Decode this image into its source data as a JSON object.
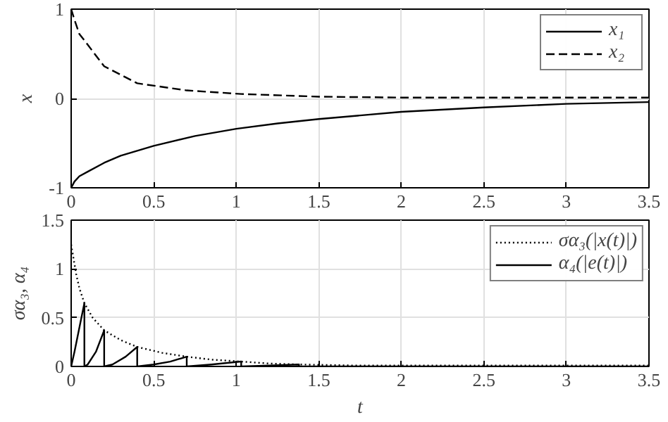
{
  "chart_data": [
    {
      "type": "line",
      "ylabel": "x",
      "xlim": [
        0,
        3.5
      ],
      "ylim": [
        -1,
        1
      ],
      "xticks": [
        0,
        0.5,
        1,
        1.5,
        2,
        2.5,
        3,
        3.5
      ],
      "yticks": [
        -1,
        0,
        1
      ],
      "grid": true,
      "legend": "top right",
      "series": [
        {
          "name": "x₁",
          "color": "#000000",
          "line_style": "solid",
          "x": [
            0,
            0.02,
            0.05,
            0.1,
            0.2,
            0.3,
            0.5,
            0.75,
            1,
            1.25,
            1.5,
            1.75,
            2,
            2.5,
            3,
            3.5
          ],
          "values": [
            -1,
            -0.93,
            -0.87,
            -0.82,
            -0.72,
            -0.64,
            -0.53,
            -0.42,
            -0.34,
            -0.28,
            -0.23,
            -0.19,
            -0.15,
            -0.1,
            -0.06,
            -0.04
          ]
        },
        {
          "name": "x₂",
          "color": "#000000",
          "line_style": "dashed",
          "x": [
            0,
            0.02,
            0.05,
            0.08,
            0.2,
            0.4,
            0.7,
            1.03,
            1.5,
            2,
            3.5
          ],
          "values": [
            1,
            0.88,
            0.72,
            0.65,
            0.36,
            0.17,
            0.09,
            0.05,
            0.02,
            0.01,
            0.01
          ]
        }
      ]
    },
    {
      "type": "line",
      "xlabel": "t",
      "ylabel": "σα₃, α₄",
      "xlim": [
        0,
        3.5
      ],
      "ylim": [
        0,
        1.5
      ],
      "xticks": [
        0,
        0.5,
        1,
        1.5,
        2,
        2.5,
        3,
        3.5
      ],
      "yticks": [
        0,
        0.5,
        1,
        1.5
      ],
      "grid": true,
      "legend": "top right",
      "series": [
        {
          "name": "σα₃(|x(t)|)",
          "color": "#000000",
          "line_style": "dotted",
          "x": [
            0,
            0.03,
            0.05,
            0.08,
            0.13,
            0.2,
            0.3,
            0.4,
            0.55,
            0.7,
            0.85,
            1.03,
            1.2,
            1.38,
            1.7,
            2,
            2.5,
            3.5
          ],
          "values": [
            1.25,
            0.95,
            0.8,
            0.65,
            0.5,
            0.37,
            0.27,
            0.2,
            0.14,
            0.1,
            0.07,
            0.05,
            0.03,
            0.02,
            0.01,
            0.01,
            0.01,
            0.01
          ]
        },
        {
          "name": "α₄(|e(t)|)",
          "color": "#000000",
          "line_style": "solid",
          "x": [
            0,
            0.02,
            0.05,
            0.08,
            0.08,
            0.1,
            0.15,
            0.2,
            0.2,
            0.25,
            0.33,
            0.4,
            0.4,
            0.5,
            0.6,
            0.7,
            0.7,
            0.85,
            1.03,
            1.03,
            1.2,
            1.38,
            1.38,
            3.5
          ],
          "values": [
            0,
            0.15,
            0.4,
            0.65,
            0,
            0.02,
            0.15,
            0.37,
            0,
            0.02,
            0.1,
            0.2,
            0,
            0.02,
            0.05,
            0.1,
            0,
            0.02,
            0.05,
            0,
            0.01,
            0.02,
            0,
            0
          ]
        }
      ]
    }
  ]
}
